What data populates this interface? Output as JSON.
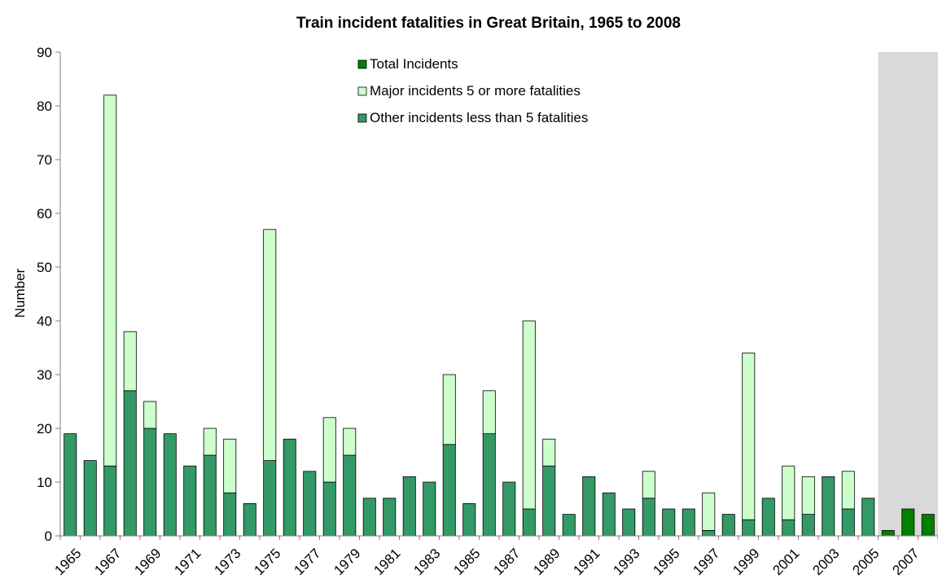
{
  "chart_data": {
    "type": "bar",
    "stacked": true,
    "title": "Train incident fatalities in Great Britain, 1965 to 2008",
    "ylabel": "Number",
    "xlabel": "",
    "ylim": [
      0,
      90
    ],
    "y_ticks": [
      0,
      10,
      20,
      30,
      40,
      50,
      60,
      70,
      80,
      90
    ],
    "grid": false,
    "legend_position": "top-center",
    "shaded_region": {
      "from_year": 2006,
      "to_year": 2008,
      "color": "#d9d9d9"
    },
    "x": [
      1965,
      1966,
      1967,
      1968,
      1969,
      1970,
      1971,
      1972,
      1973,
      1974,
      1975,
      1976,
      1977,
      1978,
      1979,
      1980,
      1981,
      1982,
      1983,
      1984,
      1985,
      1986,
      1987,
      1988,
      1989,
      1990,
      1991,
      1992,
      1993,
      1994,
      1995,
      1996,
      1997,
      1998,
      1999,
      2000,
      2001,
      2002,
      2003,
      2004,
      2005,
      2006,
      2007,
      2008
    ],
    "x_tick_labels": [
      "1965",
      "1967",
      "1969",
      "1971",
      "1973",
      "1975",
      "1977",
      "1979",
      "1981",
      "1983",
      "1985",
      "1987",
      "1989",
      "1991",
      "1993",
      "1995",
      "1997",
      "1999",
      "2001",
      "2003",
      "2005",
      "2007"
    ],
    "series": [
      {
        "name": "Total Incidents",
        "color": "#008000",
        "values": [
          null,
          null,
          null,
          null,
          null,
          null,
          null,
          null,
          null,
          null,
          null,
          null,
          null,
          null,
          null,
          null,
          null,
          null,
          null,
          null,
          null,
          null,
          null,
          null,
          null,
          null,
          null,
          null,
          null,
          null,
          null,
          null,
          null,
          null,
          null,
          null,
          null,
          null,
          null,
          null,
          null,
          1,
          5,
          4
        ]
      },
      {
        "name": "Major incidents 5 or more fatalities",
        "color": "#ccffcc",
        "values": [
          0,
          0,
          69,
          11,
          5,
          0,
          0,
          5,
          10,
          0,
          43,
          0,
          0,
          12,
          5,
          0,
          0,
          0,
          0,
          13,
          0,
          8,
          0,
          35,
          5,
          0,
          0,
          0,
          0,
          5,
          0,
          0,
          7,
          0,
          31,
          0,
          10,
          7,
          0,
          7,
          0,
          null,
          null,
          null
        ]
      },
      {
        "name": "Other incidents less than 5 fatalities",
        "color": "#339966",
        "values": [
          19,
          14,
          13,
          27,
          20,
          19,
          13,
          15,
          8,
          6,
          14,
          18,
          12,
          10,
          15,
          7,
          7,
          11,
          10,
          17,
          6,
          19,
          10,
          5,
          13,
          4,
          11,
          8,
          5,
          7,
          5,
          5,
          1,
          4,
          3,
          7,
          3,
          4,
          11,
          5,
          7,
          null,
          null,
          null
        ]
      }
    ]
  }
}
